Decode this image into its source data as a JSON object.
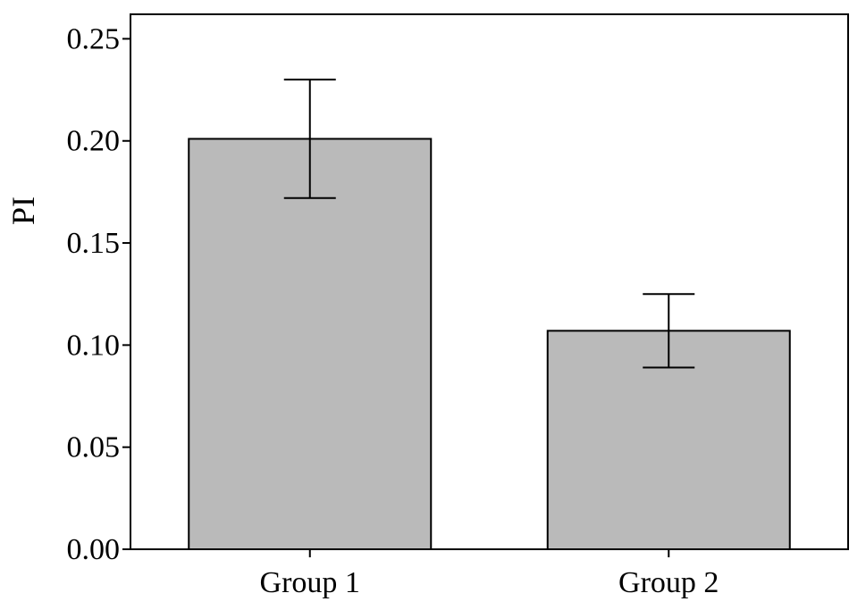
{
  "chart_data": {
    "type": "bar",
    "title": "",
    "xlabel": "",
    "ylabel": "PI",
    "categories": [
      "Group 1",
      "Group 2"
    ],
    "values": [
      0.201,
      0.107
    ],
    "error_upper": [
      0.23,
      0.125
    ],
    "error_lower": [
      0.172,
      0.089
    ],
    "ylim": [
      0,
      0.262
    ],
    "yticks": [
      "0.00",
      "0.05",
      "0.10",
      "0.15",
      "0.20",
      "0.25"
    ],
    "ytick_values": [
      0,
      0.05,
      0.1,
      0.15,
      0.2,
      0.25
    ],
    "grid": false,
    "bar_color": "#bababa",
    "edge_color": "#000000"
  }
}
